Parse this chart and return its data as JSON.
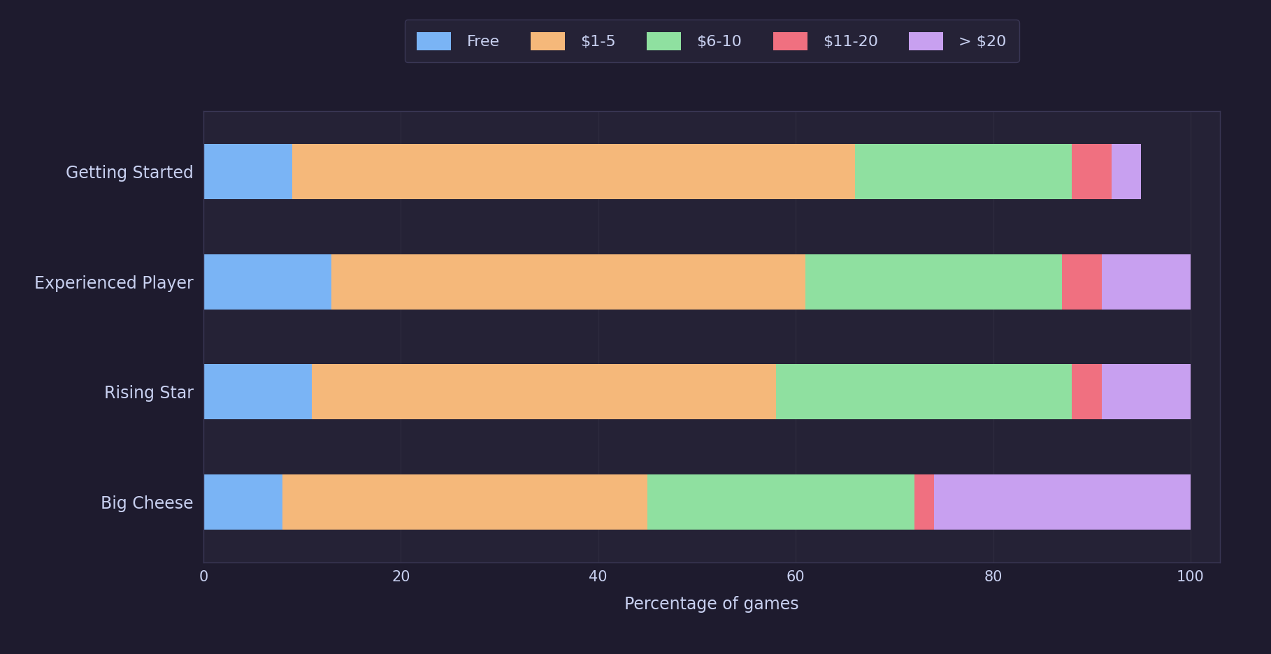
{
  "categories": [
    "Getting Started",
    "Experienced Player",
    "Rising Star",
    "Big Cheese"
  ],
  "segments": {
    "Free": [
      9,
      13,
      11,
      8
    ],
    "$1-5": [
      57,
      48,
      47,
      37
    ],
    "$6-10": [
      22,
      26,
      30,
      27
    ],
    "$11-20": [
      4,
      4,
      3,
      2
    ],
    "> $20": [
      3,
      9,
      9,
      26
    ]
  },
  "colors": {
    "Free": "#7ab4f5",
    "$1-5": "#f5b87a",
    "$6-10": "#8fe0a0",
    "$11-20": "#f07080",
    "> $20": "#c8a0f0"
  },
  "legend_labels": [
    "Free",
    "$1-5",
    "$6-10",
    "$11-20",
    "> $20"
  ],
  "xlabel": "Percentage of games",
  "xlim": [
    0,
    103
  ],
  "xticks": [
    0,
    20,
    40,
    60,
    80,
    100
  ],
  "background_color": "#1e1b2e",
  "axes_bg_color": "#252236",
  "grid_color": "#2e2b3e",
  "text_color": "#c8d0f0",
  "bar_height": 0.5,
  "label_fontsize": 17,
  "tick_fontsize": 15,
  "legend_fontsize": 16
}
